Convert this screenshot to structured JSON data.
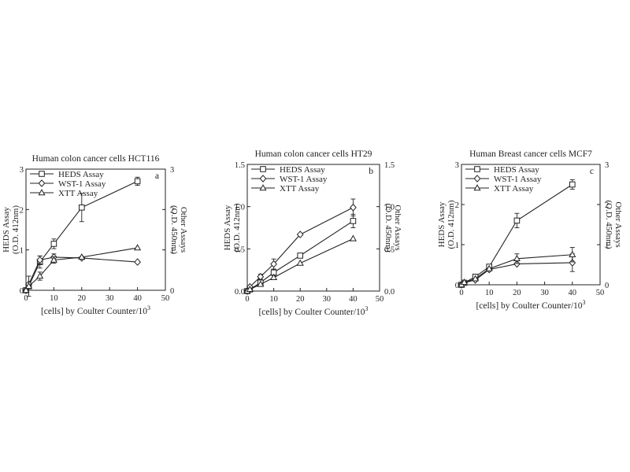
{
  "chart_data": [
    {
      "type": "line",
      "panel_label": "a",
      "title": "Human colon cancer cells HCT116",
      "xlabel": "[cells] by Coulter Counter/10",
      "xlabel_sup": "3",
      "ylabel_left": [
        "HEDS Assay",
        "(O.D. 412nm)"
      ],
      "ylabel_right": [
        "Other Assays",
        "(O.D. 450nm)"
      ],
      "xlim": [
        0,
        50
      ],
      "ylim_left": [
        0,
        3
      ],
      "ylim_right": [
        0,
        3
      ],
      "x_ticks": [
        "0",
        "10",
        "20",
        "30",
        "40",
        "50"
      ],
      "y_ticks_left": [
        "0",
        "1",
        "2",
        "3"
      ],
      "y_ticks_right": [
        "0",
        "1",
        "2",
        "3"
      ],
      "legend_position": "top-left",
      "series": [
        {
          "name": "HEDS Assay",
          "marker": "square",
          "axis": "left",
          "x": [
            0,
            1,
            5,
            10,
            20,
            40
          ],
          "y": [
            0,
            0.1,
            0.7,
            1.15,
            2.05,
            2.7
          ],
          "err": [
            0,
            0,
            0.15,
            0.12,
            0.35,
            0.1
          ]
        },
        {
          "name": "WST-1 Assay",
          "marker": "diamond",
          "axis": "right",
          "x": [
            0,
            1,
            5,
            10,
            20,
            40
          ],
          "y": [
            0,
            0.15,
            0.75,
            0.82,
            0.8,
            0.7
          ],
          "err": [
            0,
            0,
            0.1,
            0.08,
            0,
            0
          ]
        },
        {
          "name": "XTT  Assay",
          "marker": "triangle",
          "axis": "right",
          "x": [
            0,
            1,
            5,
            10,
            20,
            40
          ],
          "y": [
            0,
            0.1,
            0.35,
            0.75,
            0.82,
            1.05
          ],
          "err": [
            0,
            0.25,
            0.1,
            0.08,
            0,
            0
          ]
        }
      ]
    },
    {
      "type": "line",
      "panel_label": "b",
      "title": "Human colon cancer cells HT29",
      "xlabel": "[cells] by Coulter Counter/10",
      "xlabel_sup": "3",
      "ylabel_left": [
        "HEDS Assay",
        "(O.D. 412nm)"
      ],
      "ylabel_right": [
        "Other Assays",
        "(O.D. 450nm)"
      ],
      "xlim": [
        0,
        50
      ],
      "ylim_left": [
        0,
        1.5
      ],
      "ylim_right": [
        0,
        1.5
      ],
      "x_ticks": [
        "0",
        "10",
        "20",
        "30",
        "40",
        "50"
      ],
      "y_ticks_left": [
        "0.0",
        "0.5",
        "1.0",
        "1.5"
      ],
      "y_ticks_right": [
        "0.0",
        "0.5",
        "1.0",
        "1.5"
      ],
      "legend_position": "top-left",
      "series": [
        {
          "name": "HEDS Assay",
          "marker": "square",
          "axis": "left",
          "x": [
            0,
            1,
            5,
            10,
            20,
            40
          ],
          "y": [
            0,
            0.02,
            0.1,
            0.22,
            0.42,
            0.83
          ],
          "err": [
            0,
            0,
            0.03,
            0.04,
            0,
            0.08
          ]
        },
        {
          "name": "WST-1 Assay",
          "marker": "diamond",
          "axis": "right",
          "x": [
            0,
            1,
            5,
            10,
            20,
            40
          ],
          "y": [
            0,
            0.05,
            0.17,
            0.32,
            0.67,
            0.99
          ],
          "err": [
            0,
            0,
            0.03,
            0.06,
            0,
            0.1
          ]
        },
        {
          "name": "XTT  Assay",
          "marker": "triangle",
          "axis": "right",
          "x": [
            0,
            1,
            5,
            10,
            20,
            40
          ],
          "y": [
            0,
            0.02,
            0.08,
            0.16,
            0.33,
            0.62
          ],
          "err": [
            0,
            0,
            0,
            0,
            0,
            0
          ]
        }
      ]
    },
    {
      "type": "line",
      "panel_label": "c",
      "title": "Human Breast cancer cells MCF7",
      "xlabel": "[cells] by Coulter Counter/10",
      "xlabel_sup": "3",
      "ylabel_left": [
        "HEDS Assay",
        "(O.D. 412nm)"
      ],
      "ylabel_right": [
        "Other Assays",
        "(O.D. 450nm)"
      ],
      "xlim": [
        0,
        50
      ],
      "ylim_left": [
        0,
        3
      ],
      "ylim_right": [
        0,
        3
      ],
      "x_ticks": [
        "0",
        "10",
        "20",
        "30",
        "40",
        "50"
      ],
      "y_ticks_left": [
        "0",
        "1",
        "2",
        "3"
      ],
      "y_ticks_right": [
        "0",
        "1",
        "2",
        "3"
      ],
      "legend_position": "top-left",
      "series": [
        {
          "name": "HEDS Assay",
          "marker": "square",
          "axis": "left",
          "x": [
            0,
            1,
            5,
            10,
            20,
            40
          ],
          "y": [
            0,
            0.05,
            0.2,
            0.45,
            1.6,
            2.5
          ],
          "err": [
            0,
            0,
            0.05,
            0.05,
            0.18,
            0.12
          ]
        },
        {
          "name": "WST-1 Assay",
          "marker": "diamond",
          "axis": "right",
          "x": [
            0,
            1,
            5,
            10,
            20,
            40
          ],
          "y": [
            0,
            0.05,
            0.12,
            0.38,
            0.52,
            0.55
          ],
          "err": [
            0,
            0,
            0,
            0,
            0,
            0.22
          ]
        },
        {
          "name": "XTT  Assay",
          "marker": "triangle",
          "axis": "right",
          "x": [
            0,
            1,
            5,
            10,
            20,
            40
          ],
          "y": [
            0,
            0.06,
            0.15,
            0.4,
            0.65,
            0.75
          ],
          "err": [
            0,
            0,
            0,
            0,
            0.12,
            0.18
          ]
        }
      ]
    }
  ]
}
